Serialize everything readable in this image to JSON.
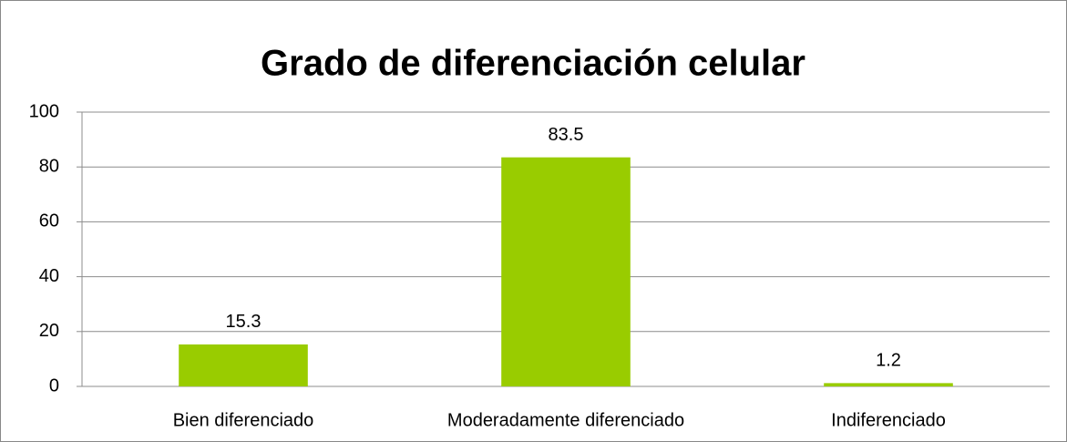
{
  "chart_data": {
    "type": "bar",
    "title": "Grado de diferenciación celular",
    "categories": [
      "Bien diferenciado",
      "Moderadamente diferenciado",
      "Indiferenciado"
    ],
    "values": [
      15.3,
      83.5,
      1.2
    ],
    "color": "#99cc00",
    "ylim": [
      0,
      100
    ],
    "yticks": [
      0,
      20,
      40,
      60,
      80,
      100
    ],
    "grid": true
  }
}
